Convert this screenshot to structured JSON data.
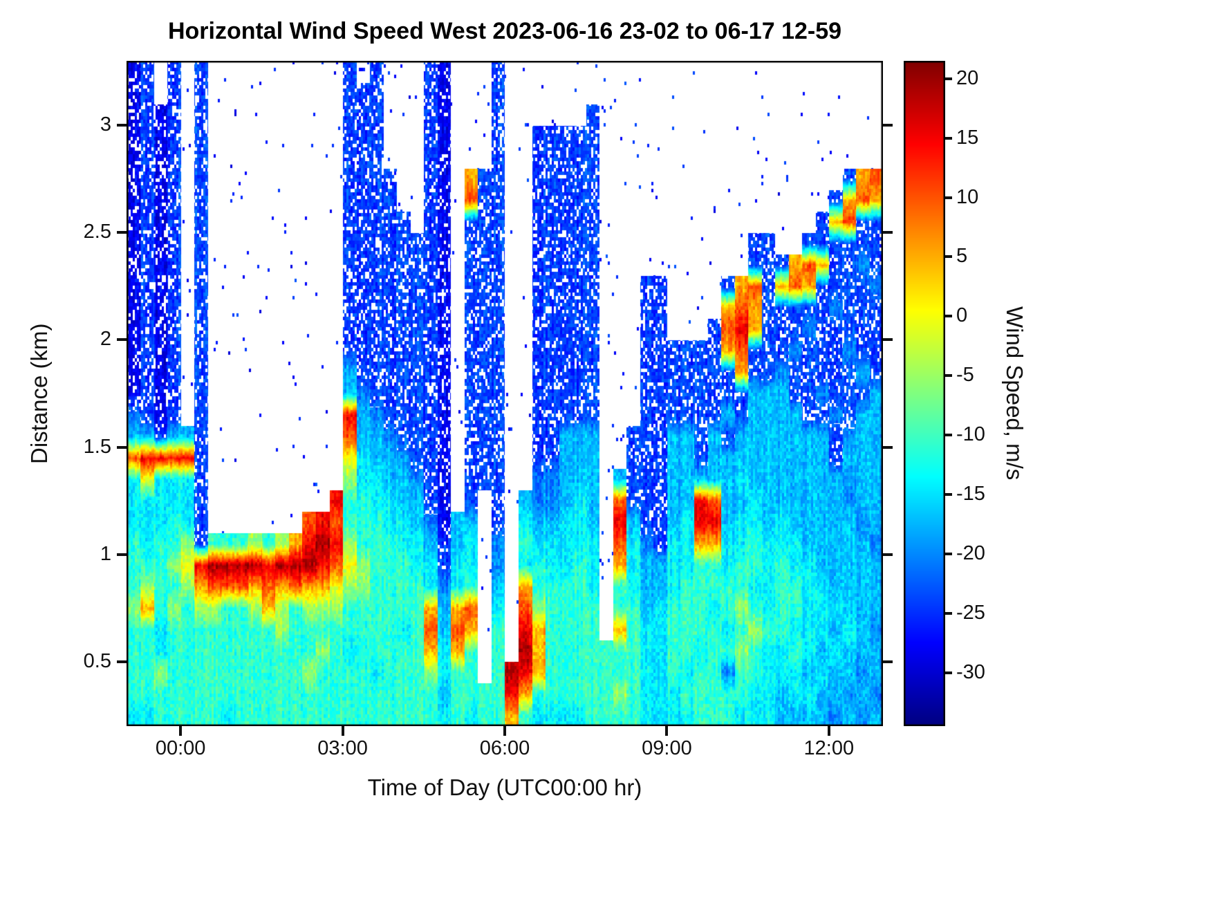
{
  "figure": {
    "title": "Horizontal Wind Speed West 2023-06-16 23-02 to 06-17 12-59",
    "xlabel": "Time of Day (UTC00:00 hr)",
    "ylabel": "Distance (km)",
    "colorbar_label": "Wind Speed, m/s"
  },
  "chart_data": {
    "type": "heatmap",
    "title": "Horizontal Wind Speed West 2023-06-16 23-02 to 06-17 12-59",
    "xlabel": "Time of Day (UTC00:00 hr)",
    "ylabel": "Distance (km)",
    "colorbar_label": "Wind Speed, m/s",
    "colormap": "jet",
    "x_axis": {
      "unit": "hours relative to 2023-06-17 00:00 UTC",
      "range": [
        -1.0,
        13.0
      ],
      "ticks": [
        {
          "hour": 0,
          "label": "00:00"
        },
        {
          "hour": 3,
          "label": "03:00"
        },
        {
          "hour": 6,
          "label": "06:00"
        },
        {
          "hour": 9,
          "label": "09:00"
        },
        {
          "hour": 12,
          "label": "12:00"
        }
      ]
    },
    "y_axis": {
      "unit": "km",
      "range": [
        0.2,
        3.3
      ],
      "ticks": [
        3,
        2.5,
        2,
        1.5,
        1,
        0.5
      ]
    },
    "color_axis": {
      "unit": "m/s",
      "range": [
        -34.5,
        21.5
      ],
      "ticks": [
        20,
        15,
        10,
        5,
        0,
        -5,
        -10,
        -15,
        -20,
        -25,
        -30
      ]
    },
    "no_data_code": ".",
    "value_codes": {
      "a": -32,
      "b": -28,
      "c": -24,
      "d": -20,
      "e": -17,
      "f": -14,
      "g": -11,
      "h": -5,
      "i": 0,
      "j": 5,
      "k": 10,
      "l": 15,
      "m": 19
    },
    "grid_note": "31 rows top-to-bottom (3.2-3.3 km down to 0.2-0.3 km, 0.1 km each) x 56 columns (23:00 to 13:00, 15 min each); '.' = no data (white). Each row is split into seven 8-column segments.",
    "grid": [
      [
        "bc.c.c..",
        "........",
        "c.c...cb",
        "...c....",
        "........",
        "........",
        "........"
      ],
      [
        "bc.c.c..",
        "........",
        "ccc...cb",
        "...c....",
        "........",
        "........",
        "........"
      ],
      [
        "bcbc.c..",
        "........",
        "ccc...cb",
        "...c....",
        "..c.....",
        "........",
        "........"
      ],
      [
        "bcbc.c..",
        "........",
        "ccc...cb",
        "...c..cc",
        "ccc.....",
        "........",
        "........"
      ],
      [
        "bcbc.c..",
        "........",
        "ccc...cb",
        "...c..cc",
        "ccc.....",
        "........",
        "........"
      ],
      [
        "bcbc.c..",
        "........",
        "cccc..cb",
        ".jcc..cc",
        "ccc.....",
        "........",
        ".....cjk"
      ],
      [
        "bcbc.c..",
        "........",
        "cccc..cb",
        ".kcc..cc",
        "ccc.....",
        "........",
        "....cjkj"
      ],
      [
        "bcbc.c..",
        "........",
        "ccccc.cb",
        ".ccc..cc",
        "ccc.....",
        "........",
        "...cjkcc"
      ],
      [
        "bcbc.c..",
        "........",
        "cccccccb",
        ".ccc..cc",
        "ccc.....",
        "......cc",
        "..cccccc"
      ],
      [
        "bcbc.c..",
        "........",
        "cccccccb",
        ".ccc..cc",
        "ccc.....",
        "......cc",
        "cjkjccdc"
      ],
      [
        "bcbc.c..",
        "........",
        "cccccccb",
        ".ccc..cc",
        "ccc...cc",
        "....cjkc",
        "jkjccccd"
      ],
      [
        "bcbc.c..",
        "........",
        "cccccccb",
        ".ccc..cc",
        "ccc...cc",
        "....jkjc",
        "ccccdccc"
      ],
      [
        "bcbc.c..",
        "........",
        "cccccccb",
        ".ccc..cc",
        "ccc...cc",
        "...ckljc",
        "ccdccccc"
      ],
      [
        "bcbc.c..",
        "........",
        "cccccccb",
        ".ccc..cc",
        "ccc...cc",
        "ccccjkcc",
        "cdcccdcc"
      ],
      [
        "bcbc.c..",
        "........",
        "eccccccb",
        ".ccc..cc",
        "ccc...cc",
        "cccccjcc",
        "dcccccec"
      ],
      [
        "bcbc.c..",
        "........",
        "edcccccb",
        ".ccc..cc",
        "ccc...cc",
        "ccccccee",
        "eccdccce"
      ],
      [
        "dcbc.c..",
        "........",
        "ledccccb",
        ".ccc..cc",
        "ccc...cc",
        "ccccecee",
        "eeccdcee"
      ],
      [
        "eeceec..",
        "........",
        "keedcccb",
        ".ccc..cc",
        "eee..ccc",
        "eececeee",
        "eeeecdee"
      ],
      [
        "kllllc..",
        "........",
        "ifeedccb",
        ".ccc..cc",
        "eee..ccc",
        "eeceeeee",
        "eeeeceee"
      ],
      [
        "fifffc..",
        "........",
        "hffeedcb",
        ".ccc..dd",
        "eee.eccc",
        "eeeeefee",
        "eeeeedee"
      ],
      [
        "fffffc..",
        ".......l",
        "ggffeecb",
        ".c.c.edd",
        "efe.kccc",
        "eelkeefe",
        "eeeeedee"
      ],
      [
        "fffgfc..",
        ".....klk",
        "gggffedb",
        "ee.c.fee",
        "ffe.lecc",
        "eflleffe",
        "feeeeede"
      ],
      [
        "gfgghcgg",
        "ghghjlml",
        "hgggffec",
        "ef.d.gff",
        "fff.kfdc",
        "ffjjffgf",
        "ffeeeeed"
      ],
      [
        "ggghilmm",
        "mmlmmmlk",
        "ihgggffc",
        "ff.d.fgf",
        "fgf.jfee",
        "ffggfggf",
        "gffeeeee"
      ],
      [
        "ghgghjkk",
        "kjkjkjji",
        "hhggggfd",
        "fg.e.jgg",
        "ggf.gfee",
        "fgggggff",
        "ggffeeee"
      ],
      [
        "hjghghhg",
        "ghjhghhh",
        "ggggggje",
        "jk.f.khg",
        "ggg.ggef",
        "gggfghgf",
        "ggfffeee"
      ],
      [
        "ggfggggg",
        "ggghgggg",
        "ggggfgke",
        "kj.g.ljg",
        "ggg.jgff",
        "ggggfghg",
        "gfffefed"
      ],
      [
        "ggfggggg",
        "gggggghg",
        "fgggggjf",
        "jg.g.mjg",
        "ggggggff",
        "ggfgghgf",
        "fgfefeee"
      ],
      [
        "gghggggg",
        "ggggghgg",
        "ggfggghf",
        "gg.gmljg",
        "ggggggff",
        "gfggdggf",
        "ffefeede"
      ],
      [
        "gggggggg",
        "gggggggg",
        "ggggggge",
        "ggggljgg",
        "gggghgff",
        "fgggggff",
        "effeeded"
      ],
      [
        "ffgggggf",
        "gggggggg",
        "gggggggf",
        "gfggjgff",
        "ffggggff",
        "ffgggfff",
        "eeeedede"
      ]
    ]
  }
}
